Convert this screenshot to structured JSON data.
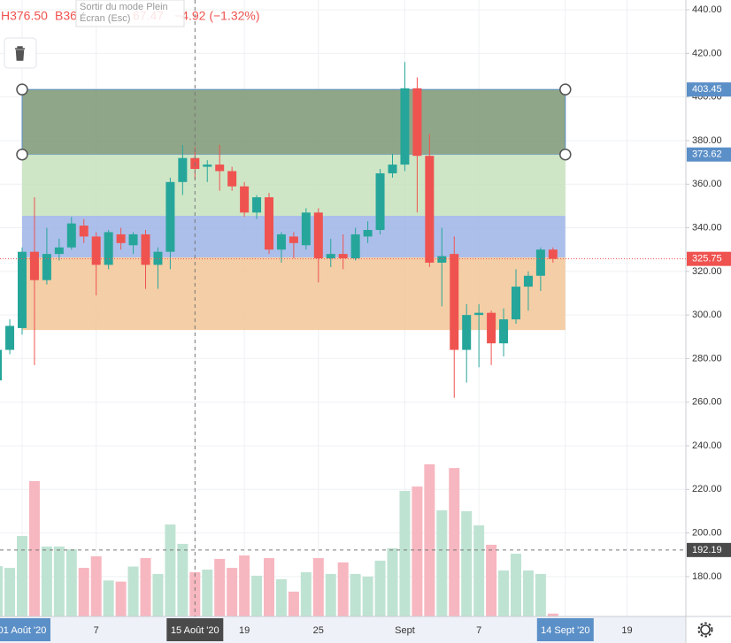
{
  "chart_data": {
    "type": "candlestick",
    "legend": [
      "H376.50",
      "B36",
      "67.47",
      "−4.92 (−1.32%)"
    ],
    "tooltip": [
      "Sortir du mode Plein",
      "Écran (Esc)"
    ],
    "categories": [
      null,
      null,
      "01 Août '20",
      null,
      null,
      null,
      null,
      null,
      "7",
      null,
      null,
      null,
      null,
      null,
      null,
      null,
      "15 Août '20",
      null,
      null,
      null,
      "19",
      null,
      null,
      null,
      null,
      null,
      "25",
      null,
      null,
      null,
      null,
      null,
      null,
      "Sept",
      null,
      null,
      null,
      null,
      null,
      "7",
      null,
      null,
      null,
      null,
      null,
      null,
      "14 Sept '20",
      null,
      null,
      null,
      null,
      "19"
    ],
    "open": [
      270,
      284,
      294,
      329,
      316,
      328,
      331,
      341,
      336,
      323,
      337,
      332,
      337,
      323,
      329,
      361,
      372,
      368,
      369,
      366,
      359,
      347,
      354,
      330,
      336,
      332,
      347,
      326,
      328,
      326,
      336,
      339,
      365,
      369,
      404,
      373,
      324,
      328,
      284,
      300,
      301,
      287,
      298,
      313,
      318,
      330,
      null,
      null,
      null,
      null,
      null,
      null
    ],
    "close": [
      284,
      295,
      329,
      316,
      328,
      331,
      342,
      336,
      323,
      338,
      333,
      337,
      323,
      329,
      361,
      372,
      367,
      369,
      366,
      359,
      347,
      354,
      330,
      337,
      333,
      347,
      326,
      328,
      326,
      337,
      339,
      365,
      369,
      404,
      373,
      324,
      327,
      284,
      300,
      301,
      287,
      298,
      313,
      318,
      330,
      325.75,
      null,
      null,
      null,
      null,
      null,
      null
    ],
    "high": [
      287,
      298,
      331,
      354,
      340,
      335,
      345,
      344,
      338,
      339,
      340,
      338,
      339,
      331,
      363,
      378,
      377,
      371,
      378,
      368,
      361,
      355,
      356,
      338,
      338,
      349,
      349,
      335,
      337,
      340,
      343,
      367,
      374,
      416,
      409,
      383,
      340,
      336,
      305,
      305,
      302,
      303,
      321,
      320,
      331,
      331,
      null,
      null,
      null,
      null,
      null,
      null
    ],
    "low": [
      268,
      282,
      291,
      277,
      314,
      325,
      330,
      333,
      309,
      321,
      330,
      328,
      312,
      312,
      321,
      355,
      362,
      361,
      357,
      357,
      345,
      344,
      328,
      324,
      326,
      330,
      315,
      322,
      321,
      325,
      333,
      337,
      363,
      366,
      347,
      322,
      304,
      262,
      269,
      276,
      277,
      281,
      296,
      302,
      311,
      324,
      null,
      null,
      null,
      null,
      null,
      null
    ],
    "volume": [
      184.8,
      184,
      198.6,
      223.8,
      193.8,
      193.8,
      192.5,
      184,
      189.3,
      178.2,
      177.7,
      184.6,
      188.5,
      181.2,
      203.9,
      195,
      182,
      183.2,
      188.1,
      184,
      189.7,
      180.4,
      188.5,
      178.8,
      173.1,
      182,
      188.5,
      181.2,
      186.5,
      181.2,
      180,
      187.3,
      193,
      219.3,
      221.3,
      231.5,
      210.4,
      229.8,
      210,
      203.5,
      194.6,
      182.8,
      190.5,
      182.8,
      181.2,
      163,
      null,
      null,
      null,
      null,
      null,
      null
    ],
    "up_color": "#26a69a",
    "down_color": "#ef5350",
    "volume_up_color": "#bfe3d3",
    "volume_down_color": "#f7b7c0",
    "ylim": [
      161.7,
      444.5
    ],
    "yticks": [
      {
        "value": 180,
        "label": "180.00"
      },
      {
        "value": 200,
        "label": "200.00"
      },
      {
        "value": 220,
        "label": "220.00"
      },
      {
        "value": 240,
        "label": "240.00"
      },
      {
        "value": 260,
        "label": "260.00"
      },
      {
        "value": 280,
        "label": "280.00"
      },
      {
        "value": 300,
        "label": "300.00"
      },
      {
        "value": 320,
        "label": "320.00"
      },
      {
        "value": 340,
        "label": "340.00"
      },
      {
        "value": 360,
        "label": "360.00"
      },
      {
        "value": 380,
        "label": "380.00"
      },
      {
        "value": 400,
        "label": "400.00"
      },
      {
        "value": 420,
        "label": "420.00"
      },
      {
        "value": 440,
        "label": "440.00"
      }
    ],
    "grid": true,
    "zones": [
      {
        "from": 403.45,
        "to": 373.62,
        "color": "#7d9673",
        "start": 2,
        "end": 46
      },
      {
        "from": 373.62,
        "to": 345.5,
        "color": "#c5e2bc",
        "start": 2,
        "end": 46
      },
      {
        "from": 345.5,
        "to": 326.4,
        "color": "#9db4e6",
        "start": 2,
        "end": 46
      },
      {
        "from": 326.4,
        "to": 293.1,
        "color": "#f2c597",
        "start": 2,
        "end": 46
      }
    ],
    "zone_label_color": "#5b8fc7",
    "last_price": 325.75,
    "crosshair": {
      "category": 16,
      "price": 192.19
    }
  }
}
